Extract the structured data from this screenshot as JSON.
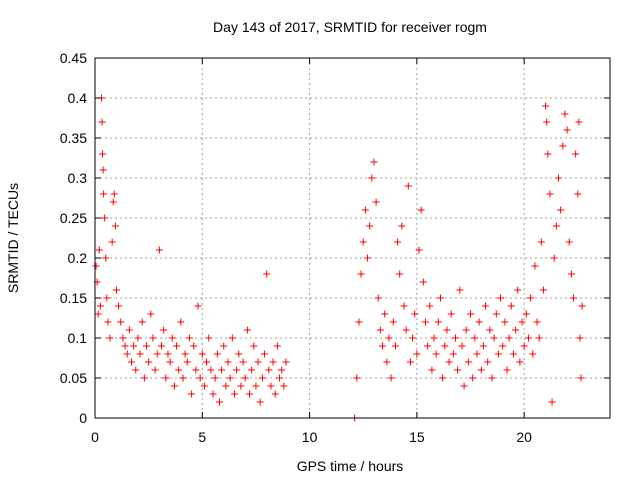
{
  "chart_data": {
    "type": "scatter",
    "title": "Day 143 of 2017, SRMTID for receiver rogm",
    "xlabel": "GPS time / hours",
    "ylabel": "SRMTID / TECUs",
    "xlim": [
      0,
      24
    ],
    "ylim": [
      0,
      0.45
    ],
    "x_ticks": [
      0,
      5,
      10,
      15,
      20
    ],
    "x_tick_labels": [
      "0",
      "5",
      "10",
      "15",
      "20"
    ],
    "y_ticks": [
      0,
      0.05,
      0.1,
      0.15,
      0.2,
      0.25,
      0.3,
      0.35,
      0.4,
      0.45
    ],
    "y_tick_labels": [
      "0",
      "0.05",
      "0.1",
      "0.15",
      "0.2",
      "0.25",
      "0.3",
      "0.35",
      "0.4",
      "0.45"
    ],
    "grid": true,
    "marker": "+",
    "series": [
      {
        "name": "SRMTID",
        "color": "#ff0000",
        "points": [
          [
            0.05,
            0.19
          ],
          [
            0.1,
            0.17
          ],
          [
            0.15,
            0.13
          ],
          [
            0.2,
            0.21
          ],
          [
            0.25,
            0.14
          ],
          [
            0.3,
            0.4
          ],
          [
            0.33,
            0.37
          ],
          [
            0.35,
            0.33
          ],
          [
            0.38,
            0.31
          ],
          [
            0.4,
            0.28
          ],
          [
            0.45,
            0.25
          ],
          [
            0.5,
            0.2
          ],
          [
            0.55,
            0.15
          ],
          [
            0.6,
            0.12
          ],
          [
            0.7,
            0.1
          ],
          [
            0.8,
            0.22
          ],
          [
            0.85,
            0.27
          ],
          [
            0.9,
            0.28
          ],
          [
            0.95,
            0.24
          ],
          [
            1.0,
            0.16
          ],
          [
            1.1,
            0.14
          ],
          [
            1.2,
            0.12
          ],
          [
            1.3,
            0.1
          ],
          [
            1.4,
            0.09
          ],
          [
            1.5,
            0.08
          ],
          [
            1.6,
            0.11
          ],
          [
            1.7,
            0.07
          ],
          [
            1.8,
            0.09
          ],
          [
            1.9,
            0.06
          ],
          [
            2.0,
            0.1
          ],
          [
            2.1,
            0.08
          ],
          [
            2.2,
            0.12
          ],
          [
            2.3,
            0.05
          ],
          [
            2.4,
            0.09
          ],
          [
            2.5,
            0.07
          ],
          [
            2.6,
            0.13
          ],
          [
            2.7,
            0.1
          ],
          [
            2.8,
            0.06
          ],
          [
            2.9,
            0.08
          ],
          [
            3.0,
            0.21
          ],
          [
            3.1,
            0.09
          ],
          [
            3.2,
            0.11
          ],
          [
            3.3,
            0.05
          ],
          [
            3.4,
            0.08
          ],
          [
            3.5,
            0.07
          ],
          [
            3.6,
            0.1
          ],
          [
            3.7,
            0.04
          ],
          [
            3.8,
            0.09
          ],
          [
            3.9,
            0.06
          ],
          [
            4.0,
            0.12
          ],
          [
            4.1,
            0.05
          ],
          [
            4.2,
            0.08
          ],
          [
            4.3,
            0.07
          ],
          [
            4.4,
            0.1
          ],
          [
            4.5,
            0.03
          ],
          [
            4.6,
            0.09
          ],
          [
            4.7,
            0.06
          ],
          [
            4.8,
            0.14
          ],
          [
            4.9,
            0.05
          ],
          [
            5.0,
            0.08
          ],
          [
            5.1,
            0.04
          ],
          [
            5.2,
            0.07
          ],
          [
            5.3,
            0.1
          ],
          [
            5.4,
            0.06
          ],
          [
            5.5,
            0.03
          ],
          [
            5.6,
            0.05
          ],
          [
            5.7,
            0.08
          ],
          [
            5.8,
            0.02
          ],
          [
            5.9,
            0.06
          ],
          [
            6.0,
            0.09
          ],
          [
            6.1,
            0.04
          ],
          [
            6.2,
            0.07
          ],
          [
            6.3,
            0.05
          ],
          [
            6.4,
            0.1
          ],
          [
            6.5,
            0.03
          ],
          [
            6.6,
            0.06
          ],
          [
            6.7,
            0.08
          ],
          [
            6.8,
            0.04
          ],
          [
            6.9,
            0.07
          ],
          [
            7.0,
            0.05
          ],
          [
            7.1,
            0.11
          ],
          [
            7.2,
            0.03
          ],
          [
            7.3,
            0.06
          ],
          [
            7.4,
            0.09
          ],
          [
            7.5,
            0.04
          ],
          [
            7.6,
            0.07
          ],
          [
            7.7,
            0.02
          ],
          [
            7.8,
            0.05
          ],
          [
            7.9,
            0.08
          ],
          [
            8.0,
            0.18
          ],
          [
            8.1,
            0.06
          ],
          [
            8.2,
            0.04
          ],
          [
            8.3,
            0.07
          ],
          [
            8.4,
            0.03
          ],
          [
            8.5,
            0.09
          ],
          [
            8.6,
            0.05
          ],
          [
            8.7,
            0.06
          ],
          [
            8.8,
            0.04
          ],
          [
            8.9,
            0.07
          ],
          [
            12.1,
            0.0
          ],
          [
            12.2,
            0.05
          ],
          [
            12.3,
            0.12
          ],
          [
            12.4,
            0.18
          ],
          [
            12.5,
            0.22
          ],
          [
            12.6,
            0.26
          ],
          [
            12.7,
            0.2
          ],
          [
            12.8,
            0.24
          ],
          [
            12.9,
            0.3
          ],
          [
            13.0,
            0.32
          ],
          [
            13.1,
            0.27
          ],
          [
            13.2,
            0.15
          ],
          [
            13.3,
            0.11
          ],
          [
            13.4,
            0.09
          ],
          [
            13.5,
            0.13
          ],
          [
            13.6,
            0.07
          ],
          [
            13.7,
            0.1
          ],
          [
            13.8,
            0.05
          ],
          [
            13.9,
            0.12
          ],
          [
            14.0,
            0.09
          ],
          [
            14.1,
            0.22
          ],
          [
            14.2,
            0.18
          ],
          [
            14.3,
            0.24
          ],
          [
            14.4,
            0.14
          ],
          [
            14.5,
            0.11
          ],
          [
            14.6,
            0.29
          ],
          [
            14.7,
            0.07
          ],
          [
            14.8,
            0.1
          ],
          [
            14.9,
            0.13
          ],
          [
            15.0,
            0.08
          ],
          [
            15.1,
            0.21
          ],
          [
            15.2,
            0.26
          ],
          [
            15.3,
            0.17
          ],
          [
            15.4,
            0.12
          ],
          [
            15.5,
            0.09
          ],
          [
            15.6,
            0.14
          ],
          [
            15.7,
            0.06
          ],
          [
            15.8,
            0.1
          ],
          [
            15.9,
            0.08
          ],
          [
            16.0,
            0.12
          ],
          [
            16.1,
            0.15
          ],
          [
            16.2,
            0.05
          ],
          [
            16.3,
            0.09
          ],
          [
            16.4,
            0.11
          ],
          [
            16.5,
            0.07
          ],
          [
            16.6,
            0.13
          ],
          [
            16.7,
            0.08
          ],
          [
            16.8,
            0.1
          ],
          [
            16.9,
            0.06
          ],
          [
            17.0,
            0.16
          ],
          [
            17.1,
            0.09
          ],
          [
            17.2,
            0.04
          ],
          [
            17.3,
            0.11
          ],
          [
            17.4,
            0.07
          ],
          [
            17.5,
            0.13
          ],
          [
            17.6,
            0.05
          ],
          [
            17.7,
            0.1
          ],
          [
            17.8,
            0.08
          ],
          [
            17.9,
            0.12
          ],
          [
            18.0,
            0.06
          ],
          [
            18.1,
            0.09
          ],
          [
            18.2,
            0.14
          ],
          [
            18.3,
            0.07
          ],
          [
            18.4,
            0.11
          ],
          [
            18.5,
            0.05
          ],
          [
            18.6,
            0.1
          ],
          [
            18.7,
            0.13
          ],
          [
            18.8,
            0.08
          ],
          [
            18.9,
            0.15
          ],
          [
            19.0,
            0.09
          ],
          [
            19.1,
            0.12
          ],
          [
            19.2,
            0.06
          ],
          [
            19.3,
            0.1
          ],
          [
            19.4,
            0.14
          ],
          [
            19.5,
            0.08
          ],
          [
            19.6,
            0.11
          ],
          [
            19.7,
            0.16
          ],
          [
            19.8,
            0.07
          ],
          [
            19.9,
            0.12
          ],
          [
            20.0,
            0.09
          ],
          [
            20.1,
            0.13
          ],
          [
            20.2,
            0.1
          ],
          [
            20.3,
            0.15
          ],
          [
            20.4,
            0.08
          ],
          [
            20.5,
            0.19
          ],
          [
            20.6,
            0.12
          ],
          [
            20.7,
            0.1
          ],
          [
            20.8,
            0.22
          ],
          [
            20.9,
            0.16
          ],
          [
            21.0,
            0.39
          ],
          [
            21.05,
            0.37
          ],
          [
            21.1,
            0.33
          ],
          [
            21.2,
            0.28
          ],
          [
            21.3,
            0.02
          ],
          [
            21.4,
            0.2
          ],
          [
            21.5,
            0.24
          ],
          [
            21.6,
            0.3
          ],
          [
            21.7,
            0.26
          ],
          [
            21.8,
            0.34
          ],
          [
            21.9,
            0.38
          ],
          [
            22.0,
            0.36
          ],
          [
            22.1,
            0.22
          ],
          [
            22.2,
            0.18
          ],
          [
            22.3,
            0.15
          ],
          [
            22.4,
            0.33
          ],
          [
            22.5,
            0.28
          ],
          [
            22.55,
            0.37
          ],
          [
            22.6,
            0.1
          ],
          [
            22.65,
            0.05
          ],
          [
            22.7,
            0.14
          ]
        ]
      }
    ]
  }
}
